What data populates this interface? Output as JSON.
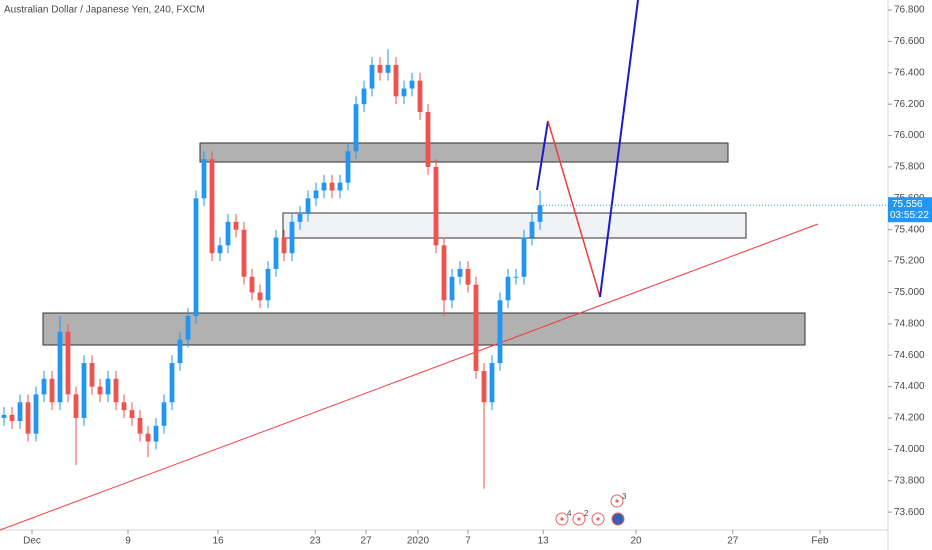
{
  "chart_data": {
    "type": "candlestick",
    "title": "Australian Dollar / Japanese Yen, 240, FXCM",
    "countdown": "03:55:22",
    "events": [
      "4",
      "2",
      "3"
    ],
    "up_color": "#2196f3",
    "down_color": "#ef5350",
    "x": [
      0,
      1,
      2,
      3,
      4,
      5,
      6,
      7,
      8,
      9,
      10,
      11,
      12,
      13,
      14,
      15,
      16,
      17,
      18,
      19,
      20,
      21,
      22,
      23,
      24,
      25,
      26,
      27,
      28,
      29,
      30,
      31,
      32,
      33,
      34,
      35,
      36,
      37,
      38,
      39,
      40,
      41,
      42,
      43,
      44,
      45,
      46,
      47,
      48,
      49,
      50,
      51,
      52,
      53,
      54,
      55,
      56,
      57,
      58,
      59,
      60,
      61,
      62,
      63,
      64,
      65,
      66,
      67
    ],
    "open": [
      74.2,
      74.22,
      74.18,
      74.3,
      74.1,
      74.35,
      74.45,
      74.3,
      74.75,
      74.35,
      74.2,
      74.55,
      74.4,
      74.35,
      74.45,
      74.3,
      74.25,
      74.2,
      74.1,
      74.05,
      74.15,
      74.3,
      74.55,
      74.7,
      74.85,
      75.6,
      75.85,
      75.25,
      75.3,
      75.45,
      75.4,
      75.1,
      75.0,
      74.95,
      75.15,
      75.35,
      75.25,
      75.45,
      75.5,
      75.6,
      75.65,
      75.7,
      75.65,
      75.7,
      75.9,
      76.2,
      76.3,
      76.45,
      76.4,
      76.45,
      76.25,
      76.3,
      76.35,
      76.15,
      75.8,
      75.3,
      74.95,
      75.1,
      75.15,
      75.05,
      74.5,
      74.3,
      74.55,
      74.95,
      75.1,
      75.1,
      75.35,
      75.45
    ],
    "high": [
      74.27,
      74.27,
      74.35,
      74.35,
      74.4,
      74.5,
      74.5,
      74.85,
      74.8,
      74.4,
      74.6,
      74.6,
      74.45,
      74.5,
      74.5,
      74.35,
      74.3,
      74.25,
      74.15,
      74.2,
      74.35,
      74.6,
      74.75,
      74.9,
      75.65,
      75.9,
      75.9,
      75.35,
      75.5,
      75.5,
      75.45,
      75.15,
      75.05,
      75.2,
      75.4,
      75.4,
      75.5,
      75.55,
      75.65,
      75.7,
      75.75,
      75.75,
      75.75,
      75.95,
      76.25,
      76.35,
      76.5,
      76.5,
      76.55,
      76.5,
      76.35,
      76.4,
      76.4,
      76.2,
      75.85,
      75.35,
      75.15,
      75.2,
      75.2,
      75.1,
      74.55,
      74.6,
      75.0,
      75.15,
      75.15,
      75.4,
      75.5,
      75.65
    ],
    "low": [
      74.15,
      74.13,
      74.13,
      74.05,
      74.05,
      74.3,
      74.25,
      74.25,
      74.3,
      73.9,
      74.15,
      74.35,
      74.3,
      74.3,
      74.25,
      74.2,
      74.15,
      74.05,
      73.95,
      74.0,
      74.1,
      74.25,
      74.5,
      74.65,
      74.8,
      75.55,
      75.2,
      75.2,
      75.25,
      75.35,
      75.05,
      74.95,
      74.9,
      74.9,
      75.1,
      75.2,
      75.2,
      75.4,
      75.45,
      75.55,
      75.6,
      75.6,
      75.6,
      75.65,
      75.85,
      76.15,
      76.25,
      76.35,
      76.35,
      76.2,
      76.2,
      76.25,
      76.1,
      75.75,
      75.25,
      74.85,
      74.9,
      75.05,
      75.0,
      74.45,
      73.75,
      74.25,
      74.5,
      74.9,
      75.05,
      75.05,
      75.3,
      75.4
    ],
    "close": [
      74.22,
      74.18,
      74.3,
      74.1,
      74.35,
      74.45,
      74.3,
      74.75,
      74.35,
      74.2,
      74.55,
      74.4,
      74.35,
      74.45,
      74.3,
      74.25,
      74.2,
      74.1,
      74.05,
      74.15,
      74.3,
      74.55,
      74.7,
      74.85,
      75.6,
      75.85,
      75.25,
      75.3,
      75.45,
      75.4,
      75.1,
      75.0,
      74.95,
      75.15,
      75.35,
      75.25,
      75.45,
      75.5,
      75.6,
      75.65,
      75.7,
      75.65,
      75.7,
      75.9,
      76.2,
      76.3,
      76.45,
      76.4,
      76.45,
      76.25,
      76.3,
      76.35,
      76.15,
      75.8,
      75.3,
      74.95,
      75.1,
      75.15,
      75.05,
      74.5,
      74.3,
      74.55,
      74.95,
      75.1,
      75.1,
      75.35,
      75.45,
      75.556
    ],
    "xlim": [
      -0.5,
      110.5
    ],
    "xticks": [
      {
        "value": 3.5,
        "label": "Dec"
      },
      {
        "value": 15.5,
        "label": "9"
      },
      {
        "value": 26.75,
        "label": "16"
      },
      {
        "value": 38.9,
        "label": "23"
      },
      {
        "value": 45.25,
        "label": "27"
      },
      {
        "value": 51.75,
        "label": "2020"
      },
      {
        "value": 58,
        "label": "7"
      },
      {
        "value": 67.4,
        "label": "13"
      },
      {
        "value": 79,
        "label": "20"
      },
      {
        "value": 91.1,
        "label": "27"
      },
      {
        "value": 102,
        "label": "Feb"
      }
    ],
    "ylim": [
      73.486,
      76.864
    ],
    "yticks": [
      {
        "value": 76.8,
        "label": "76.800"
      },
      {
        "value": 76.6,
        "label": "76.600"
      },
      {
        "value": 76.4,
        "label": "76.400"
      },
      {
        "value": 76.2,
        "label": "76.200"
      },
      {
        "value": 76.0,
        "label": "76.000"
      },
      {
        "value": 75.8,
        "label": "75.800"
      },
      {
        "value": 75.6,
        "label": "75.600"
      },
      {
        "value": 75.4,
        "label": "75.400"
      },
      {
        "value": 75.2,
        "label": "75.200"
      },
      {
        "value": 75.0,
        "label": "75.000"
      },
      {
        "value": 74.8,
        "label": "74.800"
      },
      {
        "value": 74.6,
        "label": "74.600"
      },
      {
        "value": 74.4,
        "label": "74.400"
      },
      {
        "value": 74.2,
        "label": "74.200"
      },
      {
        "value": 74.0,
        "label": "74.000"
      },
      {
        "value": 73.8,
        "label": "73.800"
      },
      {
        "value": 73.6,
        "label": "73.600"
      }
    ],
    "grid": false
  }
}
